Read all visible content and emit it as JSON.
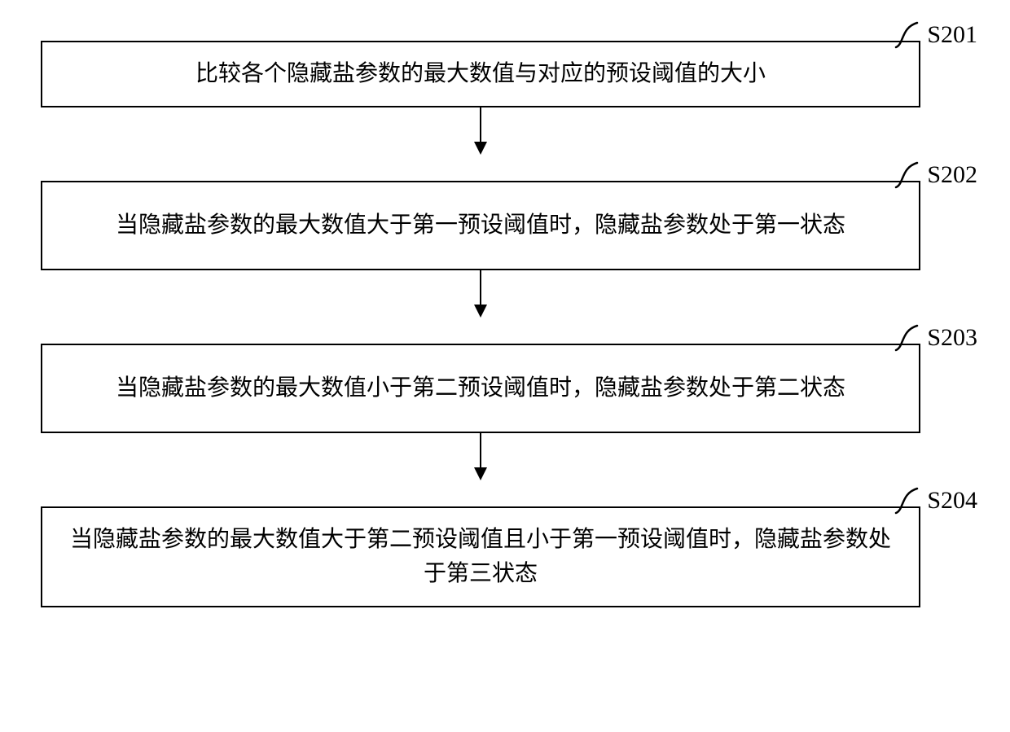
{
  "diagram": {
    "type": "flowchart",
    "direction": "vertical",
    "background_color": "#ffffff",
    "box_border_color": "#000000",
    "box_border_width": 2,
    "text_color": "#000000",
    "font_family": "SimSun",
    "font_size_box": 28,
    "font_size_label": 30,
    "arrow_color": "#000000",
    "arrow_stroke_width": 2,
    "curve_stroke_width": 2.5,
    "steps": [
      {
        "id": "S201",
        "label": "S201",
        "text": "比较各个隐藏盐参数的最大数值与对应的预设阈值的大小",
        "lines": 1,
        "height_class": "short"
      },
      {
        "id": "S202",
        "label": "S202",
        "text": "当隐藏盐参数的最大数值大于第一预设阈值时，隐藏盐参数处于第一状态",
        "lines": 2,
        "height_class": "tall"
      },
      {
        "id": "S203",
        "label": "S203",
        "text": "当隐藏盐参数的最大数值小于第二预设阈值时，隐藏盐参数处于第二状态",
        "lines": 2,
        "height_class": "tall"
      },
      {
        "id": "S204",
        "label": "S204",
        "text": "当隐藏盐参数的最大数值大于第二预设阈值且小于第一预设阈值时，隐藏盐参数处于第三状态",
        "lines": 2,
        "height_class": "tall"
      }
    ]
  }
}
